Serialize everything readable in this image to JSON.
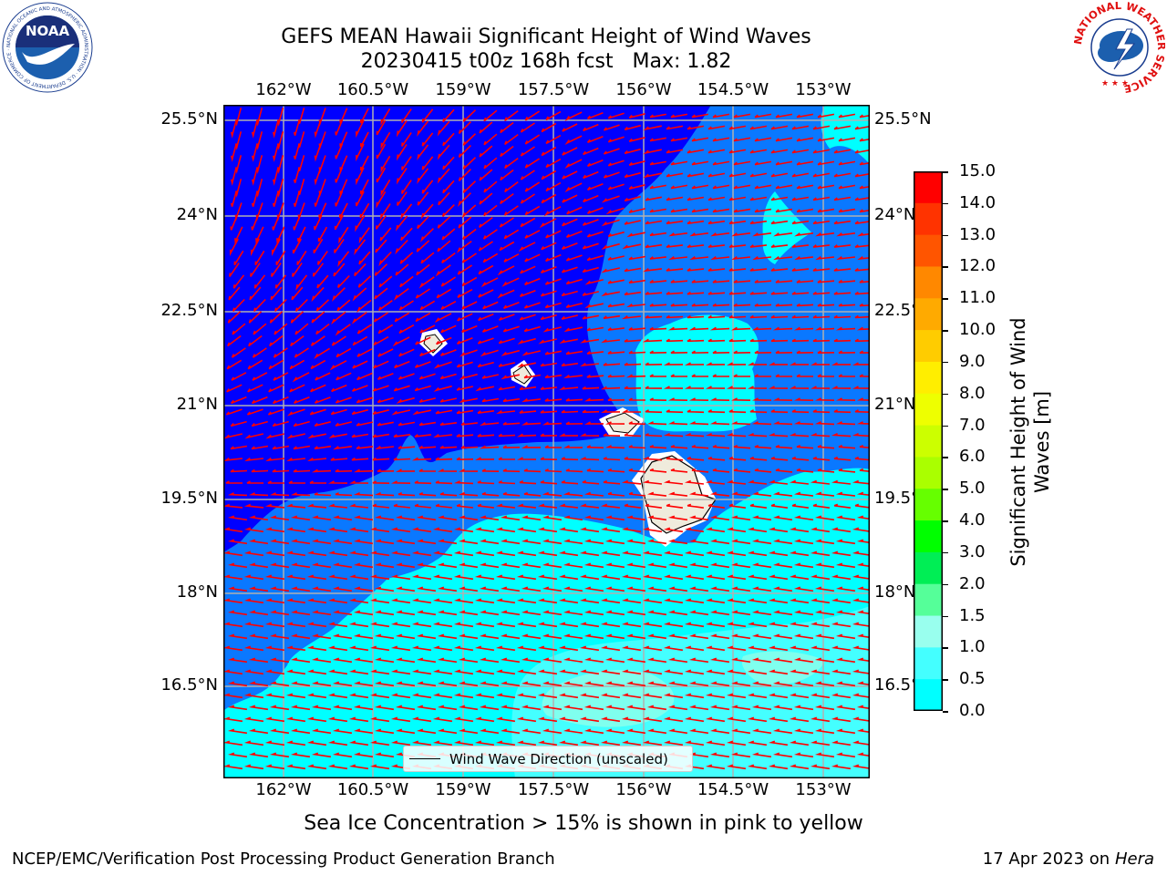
{
  "title": {
    "line1": "GEFS MEAN Hawaii Significant Height of Wind Waves",
    "line2": "20230415 t00z 168h fcst   Max: 1.82"
  },
  "map": {
    "lon_ticks": [
      "162°W",
      "160.5°W",
      "159°W",
      "157.5°W",
      "156°W",
      "154.5°W",
      "153°W"
    ],
    "lat_ticks": [
      "25.5°N",
      "24°N",
      "22.5°N",
      "21°N",
      "19.5°N",
      "18°N",
      "16.5°N"
    ],
    "lon_range": [
      -163.0,
      -152.3
    ],
    "lat_range": [
      15.35,
      25.75
    ],
    "colors": {
      "band_0_0.5": "#0000ff",
      "band_0.5_1": "#0a78ff",
      "band_1_1.5": "#00ffff",
      "band_1.5_2": "#33ffee",
      "band_2_3": "#7fffee",
      "land": "#efebdc",
      "arrow": "#ff0000",
      "grid": "#b0b0b0"
    },
    "legend_label": "Wind Wave Direction (unscaled)"
  },
  "colorbar": {
    "title_line1": "Significant Height of Wind",
    "title_line2": "Waves [m]",
    "ticks": [
      "15.0",
      "14.0",
      "13.0",
      "12.0",
      "11.0",
      "10.0",
      "9.0",
      "8.0",
      "7.0",
      "6.0",
      "5.0",
      "4.0",
      "3.0",
      "2.0",
      "1.5",
      "1.0",
      "0.5",
      "0.0"
    ],
    "colors_top_to_bottom": [
      "#ff0000",
      "#ff3300",
      "#ff5500",
      "#ff8800",
      "#ffaa00",
      "#ffcc00",
      "#ffee00",
      "#eeff00",
      "#ccff00",
      "#aaff00",
      "#66ff00",
      "#00ff00",
      "#00ee55",
      "#55ff99",
      "#99ffee",
      "#44ffff",
      "#00ffff",
      "#0a78ff",
      "#0000ff"
    ]
  },
  "notes": {
    "sea_ice": "Sea Ice Concentration > 15% is shown in pink to yellow"
  },
  "footer": {
    "left": "NCEP/EMC/Verification Post Processing Product Generation Branch",
    "right_prefix": "17 Apr 2023 on ",
    "right_machine": "Hera"
  },
  "logos": {
    "noaa": "NOAA",
    "noaa_ring": "NATIONAL OCEANIC AND ATMOSPHERIC ADMINISTRATION · U.S. DEPARTMENT OF COMMERCE ·",
    "nws_ring": "NATIONAL WEATHER SERVICE"
  }
}
